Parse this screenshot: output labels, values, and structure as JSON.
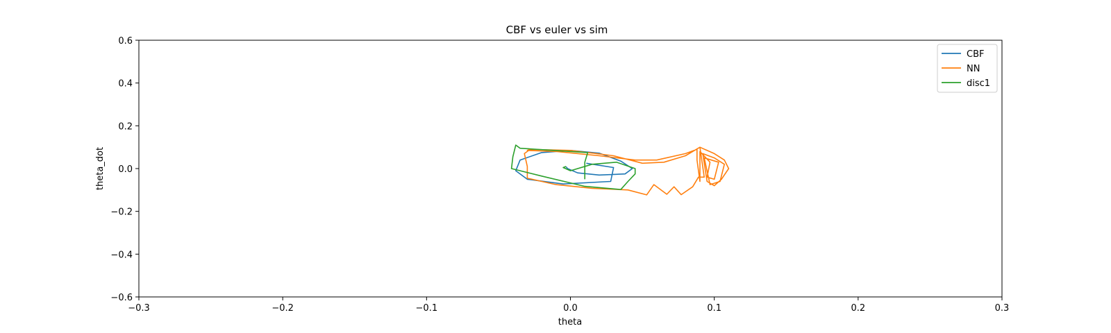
{
  "chart_data": {
    "type": "line",
    "title": "CBF vs euler vs sim",
    "xlabel": "theta",
    "ylabel": "theta_dot",
    "xlim": [
      -0.3,
      0.3
    ],
    "ylim": [
      -0.6,
      0.6
    ],
    "xticks": [
      -0.3,
      -0.2,
      -0.1,
      0.0,
      0.1,
      0.2,
      0.3
    ],
    "xtick_labels": [
      "−0.3",
      "−0.2",
      "−0.1",
      "0.0",
      "0.1",
      "0.2",
      "0.3"
    ],
    "yticks": [
      -0.6,
      -0.4,
      -0.2,
      0.0,
      0.2,
      0.4,
      0.6
    ],
    "ytick_labels": [
      "−0.6",
      "−0.4",
      "−0.2",
      "0.0",
      "0.2",
      "0.4",
      "0.6"
    ],
    "grid": false,
    "legend_position": "top-right",
    "series": [
      {
        "name": "CBF",
        "color": "#1f77b4",
        "points": [
          [
            0.011,
            0.025
          ],
          [
            0.03,
            0.005
          ],
          [
            0.028,
            -0.06
          ],
          [
            -0.005,
            -0.072
          ],
          [
            -0.03,
            -0.05
          ],
          [
            -0.038,
            -0.01
          ],
          [
            -0.035,
            0.04
          ],
          [
            -0.02,
            0.075
          ],
          [
            0.0,
            0.085
          ],
          [
            0.02,
            0.072
          ],
          [
            0.035,
            0.035
          ],
          [
            0.043,
            0.0
          ],
          [
            0.038,
            -0.025
          ],
          [
            0.02,
            -0.03
          ],
          [
            0.005,
            -0.02
          ],
          [
            -0.002,
            0.0
          ],
          [
            -0.003,
            0.008
          ]
        ]
      },
      {
        "name": "NN",
        "color": "#ff7f0e",
        "points": [
          [
            -0.028,
            0.09
          ],
          [
            -0.032,
            0.07
          ],
          [
            -0.03,
            0.01
          ],
          [
            -0.03,
            -0.045
          ],
          [
            -0.01,
            -0.075
          ],
          [
            0.015,
            -0.092
          ],
          [
            0.04,
            -0.1
          ],
          [
            0.053,
            -0.123
          ],
          [
            0.058,
            -0.075
          ],
          [
            0.067,
            -0.12
          ],
          [
            0.072,
            -0.085
          ],
          [
            0.077,
            -0.122
          ],
          [
            0.085,
            -0.085
          ],
          [
            0.089,
            -0.04
          ],
          [
            0.093,
            -0.04
          ],
          [
            0.09,
            0.1
          ],
          [
            0.1,
            0.07
          ],
          [
            0.107,
            0.04
          ],
          [
            0.11,
            0.0
          ],
          [
            0.105,
            -0.05
          ],
          [
            0.1,
            -0.08
          ],
          [
            0.095,
            -0.06
          ],
          [
            0.092,
            0.07
          ],
          [
            0.1,
            0.05
          ],
          [
            0.107,
            0.02
          ],
          [
            0.104,
            -0.06
          ],
          [
            0.097,
            -0.075
          ],
          [
            0.093,
            0.05
          ],
          [
            0.103,
            0.03
          ],
          [
            0.1,
            -0.05
          ],
          [
            0.095,
            -0.04
          ],
          [
            0.097,
            0.03
          ],
          [
            0.09,
            0.08
          ],
          [
            0.09,
            -0.06
          ],
          [
            0.088,
            0.04
          ],
          [
            0.088,
            0.09
          ],
          [
            0.08,
            0.07
          ],
          [
            0.06,
            0.04
          ],
          [
            0.045,
            0.04
          ],
          [
            0.02,
            0.06
          ],
          [
            -0.01,
            0.08
          ],
          [
            -0.03,
            0.085
          ],
          [
            -0.028,
            0.09
          ],
          [
            0.0,
            0.085
          ],
          [
            0.03,
            0.06
          ],
          [
            0.05,
            0.025
          ],
          [
            0.065,
            0.03
          ],
          [
            0.08,
            0.06
          ],
          [
            0.09,
            0.1
          ]
        ]
      },
      {
        "name": "disc1",
        "color": "#2ca02c",
        "points": [
          [
            0.01,
            -0.05
          ],
          [
            0.01,
            0.03
          ],
          [
            0.012,
            0.075
          ],
          [
            -0.035,
            0.095
          ],
          [
            -0.038,
            0.11
          ],
          [
            -0.04,
            0.055
          ],
          [
            -0.041,
            0.0
          ],
          [
            -0.02,
            -0.035
          ],
          [
            0.01,
            -0.083
          ],
          [
            0.035,
            -0.098
          ],
          [
            0.04,
            -0.06
          ],
          [
            0.045,
            -0.025
          ],
          [
            0.045,
            0.0
          ],
          [
            0.032,
            0.03
          ],
          [
            0.015,
            0.02
          ],
          [
            0.0,
            -0.01
          ],
          [
            -0.005,
            0.005
          ],
          [
            -0.003,
            0.01
          ]
        ]
      }
    ]
  }
}
